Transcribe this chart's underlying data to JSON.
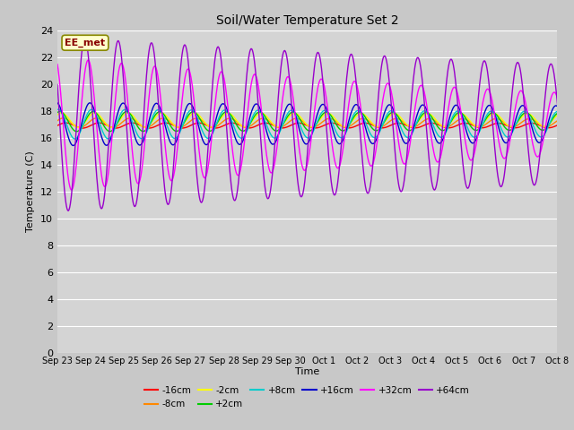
{
  "title": "Soil/Water Temperature Set 2",
  "xlabel": "Time",
  "ylabel": "Temperature (C)",
  "ylim": [
    0,
    24
  ],
  "yticks": [
    0,
    2,
    4,
    6,
    8,
    10,
    12,
    14,
    16,
    18,
    20,
    22,
    24
  ],
  "x_tick_labels": [
    "Sep 23",
    "Sep 24",
    "Sep 25",
    "Sep 26",
    "Sep 27",
    "Sep 28",
    "Sep 29",
    "Sep 30",
    "Oct 1",
    "Oct 2",
    "Oct 3",
    "Oct 4",
    "Oct 5",
    "Oct 6",
    "Oct 7",
    "Oct 8"
  ],
  "station_label": "EE_met",
  "fig_bg_color": "#c8c8c8",
  "plot_bg_color": "#d4d4d4",
  "series": [
    {
      "label": "-16cm",
      "color": "#ff0000",
      "amplitude": 0.2,
      "base": 16.9,
      "phase": 0.0,
      "decay": 0.01
    },
    {
      "label": "-8cm",
      "color": "#ff8800",
      "amplitude": 0.35,
      "base": 17.1,
      "phase": 0.15,
      "decay": 0.01
    },
    {
      "label": "-2cm",
      "color": "#ffff00",
      "amplitude": 0.55,
      "base": 17.3,
      "phase": 0.25,
      "decay": 0.01
    },
    {
      "label": "+2cm",
      "color": "#00cc00",
      "amplitude": 0.75,
      "base": 17.2,
      "phase": 0.35,
      "decay": 0.01
    },
    {
      "label": "+8cm",
      "color": "#00cccc",
      "amplitude": 1.1,
      "base": 17.0,
      "phase": 0.45,
      "decay": 0.01
    },
    {
      "label": "+16cm",
      "color": "#0000cc",
      "amplitude": 1.6,
      "base": 17.0,
      "phase": 0.55,
      "decay": 0.01
    },
    {
      "label": "+32cm",
      "color": "#ff00ff",
      "amplitude": 5.0,
      "base": 17.0,
      "phase": 0.65,
      "decay": 0.05
    },
    {
      "label": "+64cm",
      "color": "#9900cc",
      "amplitude": 6.5,
      "base": 17.0,
      "phase": 0.85,
      "decay": 0.025
    }
  ],
  "n_days": 15.5,
  "n_points": 800
}
